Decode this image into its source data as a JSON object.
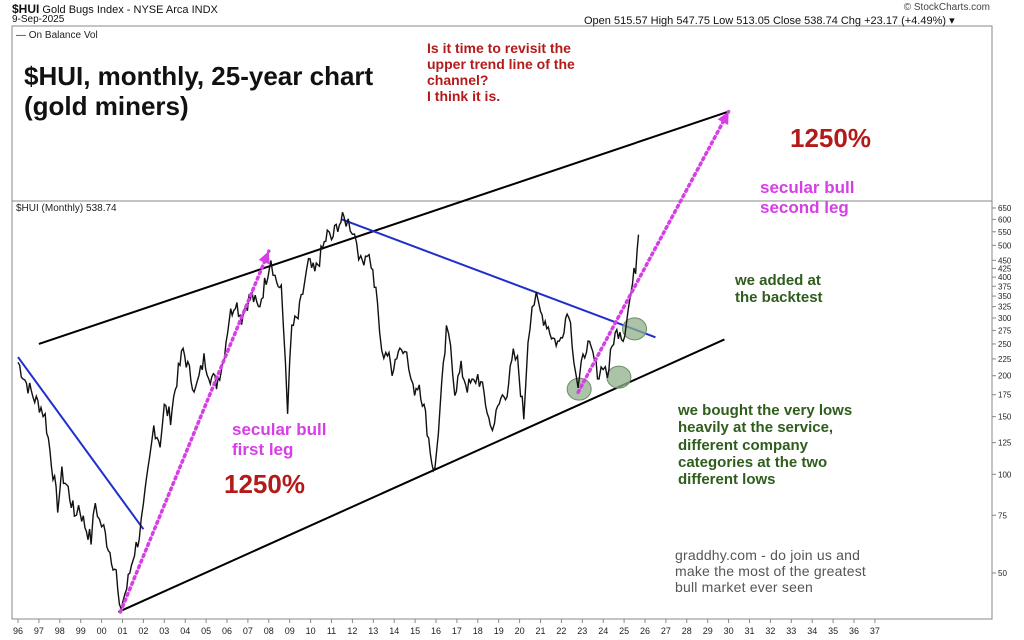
{
  "header": {
    "symbol": "$HUI",
    "index_name": "Gold Bugs Index - NYSE Arca INDX",
    "date": "9-Sep-2025",
    "quote": "Open 515.57  High 547.75  Low 513.05  Close 538.74  Chg +23.17 (+4.49%) ▾",
    "copyright": "© StockCharts.com"
  },
  "indicator_panel": {
    "label": "— On Balance Vol"
  },
  "chart_data": {
    "type": "line",
    "series": [
      {
        "name": "$HUI (Monthly) 538.74",
        "color": "#111111"
      }
    ],
    "x_tick_labels": [
      "96",
      "97",
      "98",
      "99",
      "00",
      "01",
      "02",
      "03",
      "04",
      "05",
      "06",
      "07",
      "08",
      "09",
      "10",
      "11",
      "12",
      "13",
      "14",
      "15",
      "16",
      "17",
      "18",
      "19",
      "20",
      "21",
      "22",
      "23",
      "24",
      "25",
      "26",
      "27",
      "28",
      "29",
      "30",
      "31",
      "32",
      "33",
      "34",
      "35",
      "36",
      "37"
    ],
    "y_scale": "log",
    "ylim": [
      38,
      650
    ],
    "y_tick_labels": [
      650,
      600,
      550,
      500,
      450,
      425,
      400,
      375,
      350,
      325,
      300,
      275,
      250,
      225,
      200,
      175,
      150,
      125,
      100,
      75,
      50
    ],
    "price_path": [
      [
        1996.0,
        220
      ],
      [
        1996.4,
        190
      ],
      [
        1996.8,
        170
      ],
      [
        1997.1,
        160
      ],
      [
        1997.3,
        150
      ],
      [
        1997.6,
        110
      ],
      [
        1997.9,
        80
      ],
      [
        1998.1,
        100
      ],
      [
        1998.4,
        90
      ],
      [
        1998.7,
        75
      ],
      [
        1998.9,
        80
      ],
      [
        1999.2,
        70
      ],
      [
        1999.5,
        63
      ],
      [
        1999.7,
        82
      ],
      [
        1999.9,
        72
      ],
      [
        2000.1,
        68
      ],
      [
        2000.4,
        58
      ],
      [
        2000.7,
        50
      ],
      [
        2000.85,
        38
      ],
      [
        2001.2,
        45
      ],
      [
        2001.5,
        56
      ],
      [
        2001.8,
        65
      ],
      [
        2002.0,
        78
      ],
      [
        2002.3,
        110
      ],
      [
        2002.5,
        140
      ],
      [
        2002.8,
        125
      ],
      [
        2003.0,
        160
      ],
      [
        2003.3,
        150
      ],
      [
        2003.6,
        195
      ],
      [
        2003.9,
        240
      ],
      [
        2004.2,
        205
      ],
      [
        2004.5,
        180
      ],
      [
        2004.9,
        225
      ],
      [
        2005.2,
        200
      ],
      [
        2005.5,
        190
      ],
      [
        2005.8,
        220
      ],
      [
        2006.1,
        300
      ],
      [
        2006.4,
        340
      ],
      [
        2006.7,
        300
      ],
      [
        2006.9,
        330
      ],
      [
        2007.2,
        350
      ],
      [
        2007.5,
        320
      ],
      [
        2007.8,
        380
      ],
      [
        2008.1,
        460
      ],
      [
        2008.3,
        400
      ],
      [
        2008.6,
        360
      ],
      [
        2008.8,
        220
      ],
      [
        2008.9,
        160
      ],
      [
        2009.1,
        280
      ],
      [
        2009.4,
        300
      ],
      [
        2009.7,
        380
      ],
      [
        2009.9,
        440
      ],
      [
        2010.2,
        410
      ],
      [
        2010.5,
        470
      ],
      [
        2010.8,
        540
      ],
      [
        2011.0,
        520
      ],
      [
        2011.3,
        580
      ],
      [
        2011.6,
        600
      ],
      [
        2011.8,
        590
      ],
      [
        2012.0,
        560
      ],
      [
        2012.2,
        520
      ],
      [
        2012.4,
        440
      ],
      [
        2012.7,
        480
      ],
      [
        2012.9,
        440
      ],
      [
        2013.2,
        330
      ],
      [
        2013.4,
        230
      ],
      [
        2013.6,
        240
      ],
      [
        2013.9,
        210
      ],
      [
        2014.2,
        240
      ],
      [
        2014.5,
        250
      ],
      [
        2014.7,
        210
      ],
      [
        2014.9,
        180
      ],
      [
        2015.2,
        190
      ],
      [
        2015.5,
        150
      ],
      [
        2015.8,
        110
      ],
      [
        2015.95,
        102
      ],
      [
        2016.2,
        160
      ],
      [
        2016.5,
        270
      ],
      [
        2016.7,
        250
      ],
      [
        2016.9,
        180
      ],
      [
        2017.2,
        210
      ],
      [
        2017.5,
        185
      ],
      [
        2017.8,
        190
      ],
      [
        2018.0,
        200
      ],
      [
        2018.3,
        175
      ],
      [
        2018.6,
        140
      ],
      [
        2018.8,
        145
      ],
      [
        2019.1,
        170
      ],
      [
        2019.4,
        180
      ],
      [
        2019.7,
        230
      ],
      [
        2019.9,
        220
      ],
      [
        2020.2,
        150
      ],
      [
        2020.4,
        260
      ],
      [
        2020.6,
        330
      ],
      [
        2020.8,
        340
      ],
      [
        2021.0,
        310
      ],
      [
        2021.3,
        290
      ],
      [
        2021.6,
        260
      ],
      [
        2021.9,
        250
      ],
      [
        2022.2,
        300
      ],
      [
        2022.35,
        320
      ],
      [
        2022.6,
        230
      ],
      [
        2022.8,
        185
      ],
      [
        2022.95,
        210
      ],
      [
        2023.2,
        250
      ],
      [
        2023.5,
        230
      ],
      [
        2023.8,
        200
      ],
      [
        2024.0,
        220
      ],
      [
        2024.2,
        200
      ],
      [
        2024.5,
        260
      ],
      [
        2024.8,
        280
      ],
      [
        2024.95,
        260
      ],
      [
        2025.2,
        320
      ],
      [
        2025.4,
        380
      ],
      [
        2025.55,
        430
      ],
      [
        2025.69,
        538.74
      ]
    ],
    "trend_lines": [
      {
        "name": "upper-channel",
        "color": "#000000",
        "from": [
          1997.0,
          250
        ],
        "to": [
          2030.0,
          1280
        ]
      },
      {
        "name": "lower-channel",
        "color": "#000000",
        "from": [
          2000.8,
          38
        ],
        "to": [
          2029.8,
          258
        ]
      },
      {
        "name": "early-downtrend",
        "color": "#1f2ecc",
        "from": [
          1996.0,
          228
        ],
        "to": [
          2002.0,
          68
        ]
      },
      {
        "name": "channel-downtrend",
        "color": "#1f2ecc",
        "from": [
          2011.5,
          600
        ],
        "to": [
          2026.5,
          262
        ]
      }
    ],
    "arrows": [
      {
        "name": "first-leg-arrow",
        "color": "#d63ee6",
        "from": [
          2000.9,
          38
        ],
        "to": [
          2008.0,
          480
        ]
      },
      {
        "name": "second-leg-arrow",
        "color": "#d63ee6",
        "from": [
          2022.8,
          178
        ],
        "to": [
          2030.0,
          1280
        ]
      }
    ],
    "highlights": [
      {
        "name": "low-2022",
        "x": 2022.85,
        "y": 182
      },
      {
        "name": "low-2024",
        "x": 2024.75,
        "y": 198
      },
      {
        "name": "backtest-2025",
        "x": 2025.5,
        "y": 278
      }
    ]
  },
  "annotations": {
    "title": "$HUI, monthly, 25-year chart\n(gold miners)",
    "question": "Is it time to revisit the\nupper trend line of the\nchannel?\nI think it is.",
    "pct_second": "1250%",
    "second_leg": "secular bull\nsecond leg",
    "added": "we added at\nthe backtest",
    "first_leg": "secular bull\nfirst leg",
    "pct_first": "1250%",
    "bought": "we bought the very lows\nheavily at the service,\ndifferent company\ncategories at the two\ndifferent lows",
    "promo": "graddhy.com - do join us and\nmake the most of the greatest\nbull market ever seen"
  },
  "colors": {
    "title": "#111111",
    "question": "#b31b1b",
    "pct": "#b31b1b",
    "secular": "#d63ee6",
    "green": "#2e5d1c",
    "promo": "#555555"
  }
}
